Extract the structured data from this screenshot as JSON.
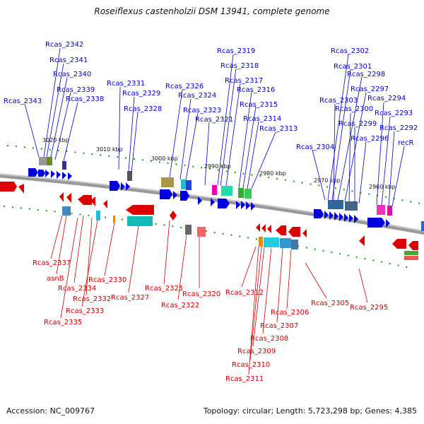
{
  "title": "Roseiflexus castenholzii DSM 13941, complete genome",
  "accession": "Accession: NC_009767",
  "topology": "Topology: circular; Length: 5,723,298 bp; Genes: 4,385",
  "colors": {
    "forward": "#0000dd",
    "reverse": "#dd0000",
    "backbone": "#888888",
    "tick": "#119911",
    "label_forward": "#0000cc",
    "label_reverse": "#cc0000"
  },
  "scale_labels": [
    "3020 kbp",
    "3010 kbp",
    "3000 kbp",
    "2990 kbp",
    "2980 kbp",
    "2970 kbp",
    "2960 kbp"
  ],
  "forward_labels": [
    "Rcas_2343",
    "Rcas_2342",
    "Rcas_2341",
    "Rcas_2340",
    "Rcas_2339",
    "Rcas_2338",
    "Rcas_2331",
    "Rcas_2329",
    "Rcas_2328",
    "Rcas_2326",
    "Rcas_2324",
    "Rcas_2323",
    "Rcas_2321",
    "Rcas_2319",
    "Rcas_2318",
    "Rcas_2317",
    "Rcas_2316",
    "Rcas_2315",
    "Rcas_2314",
    "Rcas_2313",
    "Rcas_2304",
    "Rcas_2302",
    "Rcas_2301",
    "Rcas_2298",
    "Rcas_2297",
    "Rcas_2303",
    "Rcas_2300",
    "Rcas_2299",
    "Rcas_2296",
    "Rcas_2294",
    "Rcas_2293",
    "Rcas_2292",
    "recR"
  ],
  "reverse_labels": [
    "Rcas_2337",
    "asnB",
    "Rcas_2334",
    "Rcas_2332",
    "Rcas_2333",
    "Rcas_2335",
    "Rcas_2330",
    "Rcas_2327",
    "Rcas_2325",
    "Rcas_2322",
    "Rcas_2320",
    "Rcas_2312",
    "Rcas_2311",
    "Rcas_2310",
    "Rcas_2309",
    "Rcas_2308",
    "Rcas_2307",
    "Rcas_2306",
    "Rcas_2305",
    "Rcas_2295"
  ]
}
